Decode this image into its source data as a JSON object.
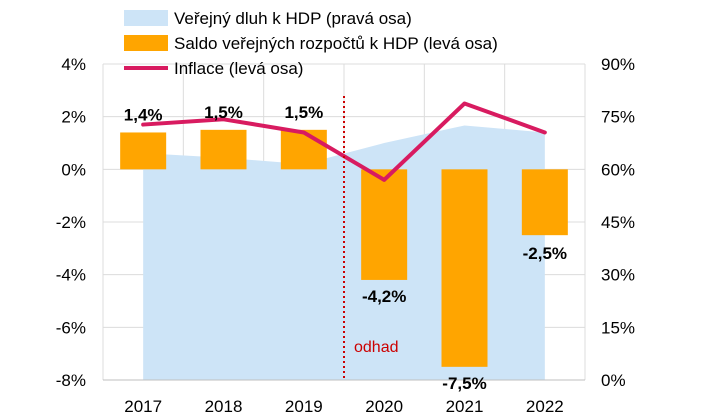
{
  "chart_data": {
    "type": "bar",
    "categories": [
      "2017",
      "2018",
      "2019",
      "2020",
      "2021",
      "2022"
    ],
    "y_left": {
      "min": -8,
      "max": 4,
      "step": 2,
      "ticks": [
        "-8%",
        "-6%",
        "-4%",
        "-2%",
        "0%",
        "2%",
        "4%"
      ]
    },
    "y_right": {
      "min": 0,
      "max": 90,
      "step": 15,
      "ticks": [
        "0%",
        "15%",
        "30%",
        "45%",
        "60%",
        "75%",
        "90%"
      ]
    },
    "series": [
      {
        "name": "Veřejný dluh k HDP (pravá osa)",
        "type": "area",
        "axis": "right",
        "color": "#cde4f7",
        "values": [
          64.6,
          63.3,
          61.5,
          67.5,
          72.5,
          70.5
        ]
      },
      {
        "name": "Saldo veřejných rozpočtů k HDP (levá osa)",
        "type": "bar",
        "axis": "left",
        "color": "#ffa500",
        "values": [
          1.4,
          1.5,
          1.5,
          -4.2,
          -7.5,
          -2.5
        ],
        "labels": [
          "1,4%",
          "1,5%",
          "1,5%",
          "-4,2%",
          "-7,5%",
          "-2,5%"
        ]
      },
      {
        "name": "Inflace (levá osa)",
        "type": "line",
        "axis": "left",
        "color": "#d81b60",
        "values": [
          1.7,
          1.9,
          1.4,
          -0.4,
          2.5,
          1.4
        ]
      }
    ],
    "annotation": {
      "text": "odhad",
      "color": "#cc0000",
      "between": [
        "2019",
        "2020"
      ]
    },
    "legend": "top-left"
  }
}
